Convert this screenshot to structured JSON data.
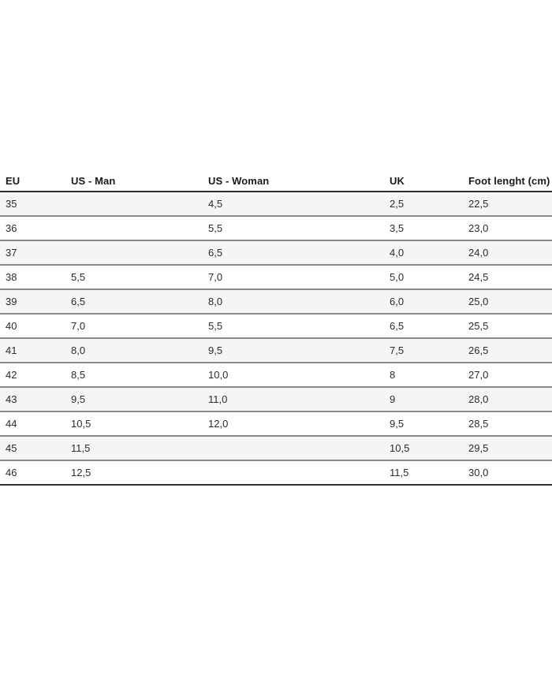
{
  "table": {
    "name": "shoe-size-conversion-chart",
    "columns": [
      {
        "key": "eu",
        "label": "EU"
      },
      {
        "key": "us_man",
        "label": "US - Man"
      },
      {
        "key": "us_woman",
        "label": "US - Woman"
      },
      {
        "key": "uk",
        "label": "UK"
      },
      {
        "key": "foot",
        "label": "Foot lenght (cm)"
      }
    ],
    "rows": [
      {
        "eu": "35",
        "us_man": "",
        "us_woman": "4,5",
        "uk": "2,5",
        "foot": "22,5"
      },
      {
        "eu": "36",
        "us_man": "",
        "us_woman": "5,5",
        "uk": "3,5",
        "foot": "23,0"
      },
      {
        "eu": "37",
        "us_man": "",
        "us_woman": "6,5",
        "uk": "4,0",
        "foot": "24,0"
      },
      {
        "eu": "38",
        "us_man": "5,5",
        "us_woman": "7,0",
        "uk": "5,0",
        "foot": "24,5"
      },
      {
        "eu": "39",
        "us_man": "6,5",
        "us_woman": "8,0",
        "uk": "6,0",
        "foot": "25,0"
      },
      {
        "eu": "40",
        "us_man": "7,0",
        "us_woman": "5,5",
        "uk": "6,5",
        "foot": "25,5"
      },
      {
        "eu": "41",
        "us_man": "8,0",
        "us_woman": "9,5",
        "uk": "7,5",
        "foot": "26,5"
      },
      {
        "eu": "42",
        "us_man": "8,5",
        "us_woman": "10,0",
        "uk": "8",
        "foot": "27,0"
      },
      {
        "eu": "43",
        "us_man": "9,5",
        "us_woman": "11,0",
        "uk": "9",
        "foot": "28,0"
      },
      {
        "eu": "44",
        "us_man": "10,5",
        "us_woman": "12,0",
        "uk": "9,5",
        "foot": "28,5"
      },
      {
        "eu": "45",
        "us_man": "11,5",
        "us_woman": "",
        "uk": "10,5",
        "foot": "29,5"
      },
      {
        "eu": "46",
        "us_man": "12,5",
        "us_woman": "",
        "uk": "11,5",
        "foot": "30,0"
      }
    ],
    "colors": {
      "stripe_bg": "#f5f5f5",
      "row_separator": "#8a8a8a",
      "strong_border": "#2f2f2f",
      "header_text": "#1a1a1a",
      "cell_text": "#2b2b2b"
    }
  }
}
